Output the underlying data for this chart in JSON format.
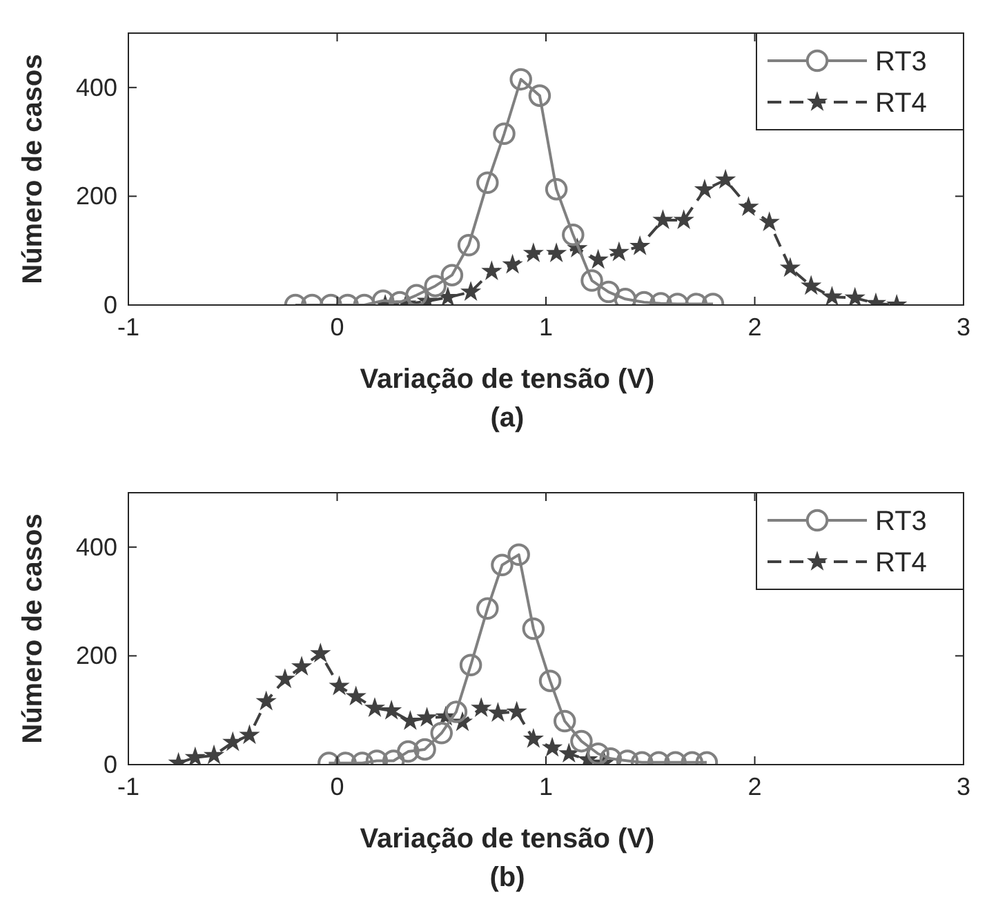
{
  "chart_data": [
    {
      "type": "line",
      "xlabel": "Variação de tensão (V)",
      "ylabel": "Número de casos",
      "annotations": [
        "(a)"
      ],
      "xlim": [
        -1,
        3
      ],
      "xticks": [
        -1,
        0,
        1,
        2,
        3
      ],
      "ylim": [
        0,
        500
      ],
      "yticks": [
        0,
        200,
        400
      ],
      "grid": false,
      "legend": "top right",
      "series": [
        {
          "name": "RT3",
          "color": "#808080",
          "marker": "circle",
          "line_style": "solid",
          "x": [
            -0.2,
            -0.12,
            -0.03,
            0.05,
            0.13,
            0.22,
            0.3,
            0.38,
            0.47,
            0.55,
            0.63,
            0.72,
            0.8,
            0.88,
            0.97,
            1.05,
            1.13,
            1.22,
            1.3,
            1.38,
            1.47,
            1.55,
            1.63,
            1.72,
            1.8
          ],
          "values": [
            0,
            0,
            0,
            0,
            0,
            8,
            5,
            18,
            35,
            55,
            110,
            225,
            315,
            415,
            385,
            213,
            129,
            45,
            24,
            11,
            5,
            3,
            2,
            2,
            2
          ]
        },
        {
          "name": "RT4",
          "color": "#404040",
          "marker": "star",
          "line_style": "dashed",
          "x": [
            0.23,
            0.33,
            0.43,
            0.53,
            0.64,
            0.74,
            0.84,
            0.94,
            1.05,
            1.15,
            1.25,
            1.35,
            1.45,
            1.56,
            1.66,
            1.76,
            1.86,
            1.97,
            2.07,
            2.17,
            2.27,
            2.37,
            2.48,
            2.58,
            2.68
          ],
          "values": [
            0,
            2,
            7,
            14,
            24,
            62,
            74,
            95,
            95,
            104,
            83,
            97,
            108,
            156,
            156,
            212,
            230,
            180,
            152,
            68,
            35,
            15,
            13,
            3,
            0
          ]
        }
      ]
    },
    {
      "type": "line",
      "xlabel": "Variação de tensão (V)",
      "ylabel": "Número de casos",
      "annotations": [
        "(b)"
      ],
      "xlim": [
        -1,
        3
      ],
      "xticks": [
        -1,
        0,
        1,
        2,
        3
      ],
      "ylim": [
        0,
        500
      ],
      "yticks": [
        0,
        200,
        400
      ],
      "grid": false,
      "legend": "top right",
      "series": [
        {
          "name": "RT3",
          "color": "#808080",
          "marker": "circle",
          "line_style": "solid",
          "x": [
            -0.04,
            0.04,
            0.12,
            0.19,
            0.27,
            0.34,
            0.42,
            0.5,
            0.57,
            0.64,
            0.72,
            0.79,
            0.87,
            0.94,
            1.02,
            1.09,
            1.17,
            1.25,
            1.31,
            1.39,
            1.46,
            1.54,
            1.62,
            1.7,
            1.77
          ],
          "values": [
            3,
            3,
            3,
            7,
            7,
            24,
            28,
            58,
            97,
            183,
            287,
            367,
            386,
            250,
            154,
            80,
            43,
            20,
            11,
            7,
            4,
            4,
            4,
            4,
            4
          ]
        },
        {
          "name": "RT4",
          "color": "#404040",
          "marker": "star",
          "line_style": "dashed",
          "x": [
            -0.76,
            -0.68,
            -0.59,
            -0.5,
            -0.42,
            -0.34,
            -0.25,
            -0.17,
            -0.08,
            0.01,
            0.09,
            0.18,
            0.26,
            0.35,
            0.43,
            0.52,
            0.6,
            0.69,
            0.77,
            0.86,
            0.94,
            1.03,
            1.11,
            1.2,
            1.28
          ],
          "values": [
            3,
            13,
            17,
            41,
            54,
            116,
            157,
            180,
            204,
            144,
            125,
            104,
            99,
            80,
            86,
            88,
            78,
            104,
            95,
            97,
            47,
            31,
            20,
            9,
            3
          ]
        }
      ]
    }
  ]
}
